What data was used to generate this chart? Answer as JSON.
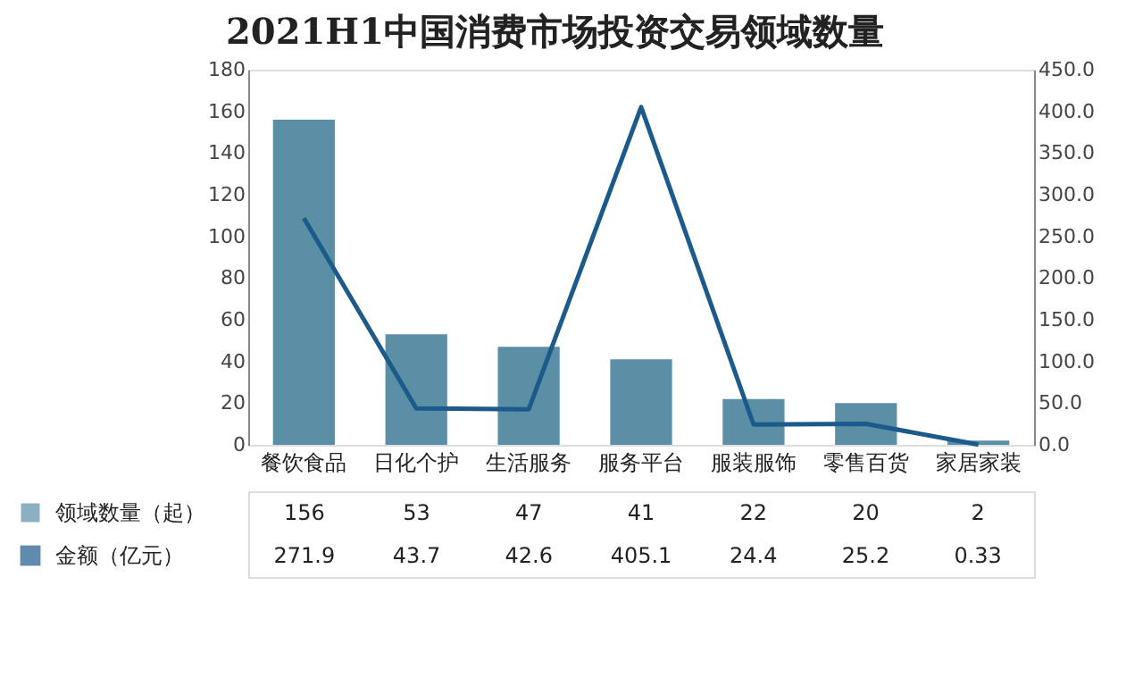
{
  "chart_data": {
    "type": "bar",
    "title": "2021H1中国消费市场投资交易领域数量",
    "categories": [
      "餐饮食品",
      "日化个护",
      "生活服务",
      "服务平台",
      "服装服饰",
      "零售百货",
      "家居家装"
    ],
    "series": [
      {
        "name": "领域数量（起）",
        "type": "bar",
        "color": "#5a8fa6",
        "values": [
          156,
          53,
          47,
          41,
          22,
          20,
          2
        ]
      },
      {
        "name": "金额（亿元）",
        "type": "line",
        "axis": "y2",
        "color": "#1c5a8c",
        "values": [
          271.9,
          43.7,
          42.6,
          405.1,
          24.4,
          25.2,
          0.33
        ]
      }
    ],
    "ylim": [
      0,
      180
    ],
    "yticks": [
      0,
      20,
      40,
      60,
      80,
      100,
      120,
      140,
      160,
      180
    ],
    "y2lim": [
      0,
      450
    ],
    "y2ticks": [
      {
        "value": 0,
        "label": "0.0"
      },
      {
        "value": 50,
        "label": "50.0"
      },
      {
        "value": 100,
        "label": "100.0"
      },
      {
        "value": 150,
        "label": "150.0"
      },
      {
        "value": 200,
        "label": "200.0"
      },
      {
        "value": 250,
        "label": "250.0"
      },
      {
        "value": 300,
        "label": "300.0"
      },
      {
        "value": 350,
        "label": "350.0"
      },
      {
        "value": 400,
        "label": "400.0"
      },
      {
        "value": 450,
        "label": "450.0"
      }
    ],
    "data_labels": true,
    "grid": false,
    "legend": "bottom",
    "marker": "none",
    "line_style": "solid"
  }
}
